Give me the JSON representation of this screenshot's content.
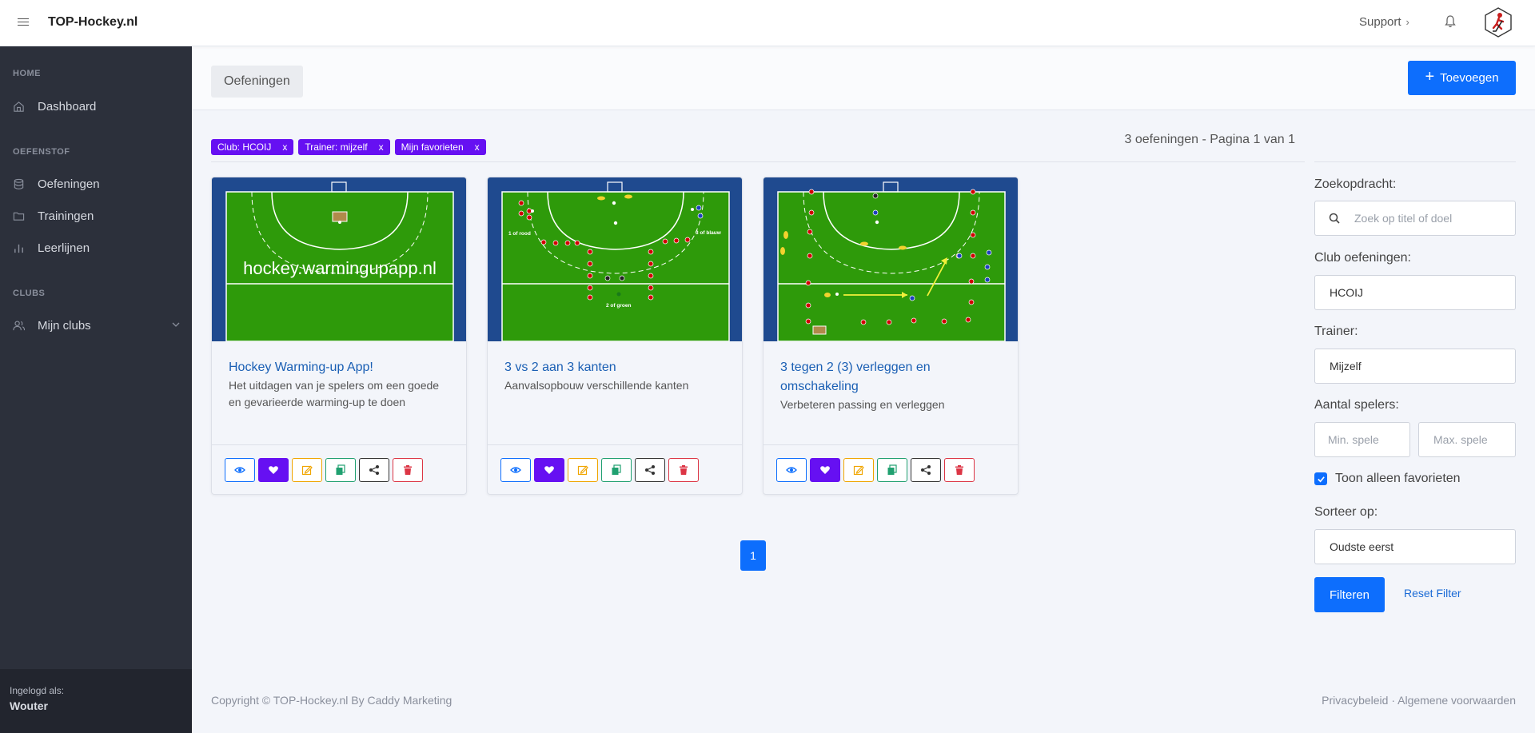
{
  "header": {
    "brand": "TOP-Hockey.nl",
    "support_label": "Support",
    "support_chevron": "›",
    "icons": [
      "menu-icon",
      "bell-icon",
      "hockey-player-avatar-icon"
    ]
  },
  "sidebar": {
    "sections": [
      {
        "label": "HOME",
        "items": [
          {
            "label": "Dashboard",
            "icon": "home-icon"
          }
        ]
      },
      {
        "label": "OEFENSTOF",
        "items": [
          {
            "label": "Oefeningen",
            "icon": "database-icon"
          },
          {
            "label": "Trainingen",
            "icon": "folder-icon"
          },
          {
            "label": "Leerlijnen",
            "icon": "bar-chart-icon"
          }
        ]
      },
      {
        "label": "CLUBS",
        "items": [
          {
            "label": "Mijn clubs",
            "icon": "users-icon"
          }
        ]
      }
    ],
    "login_label": "Ingelogd als:",
    "login_name": "Wouter"
  },
  "page": {
    "breadcrumb": "Oefeningen",
    "add_label": "Toevoegen",
    "add_plus": "+",
    "chips": [
      {
        "label": "Club: HCOIJ",
        "remove": "x"
      },
      {
        "label": "Trainer: mijzelf",
        "remove": "x"
      },
      {
        "label": "Mijn favorieten",
        "remove": "x"
      }
    ],
    "result_text": "3 oefeningen - Pagina 1 van 1",
    "current_page": "1"
  },
  "cards": [
    {
      "title": "Hockey Warming-up App!",
      "description": "Het uitdagen van je spelers om een goede en gevarieerde warming-up te doen",
      "overlay_text": "hockey.warmingupapp.nl"
    },
    {
      "title": "3 vs 2 aan 3 kanten",
      "description": "Aanvalsopbouw verschillende kanten",
      "labels": [
        "1 of rood",
        "3 of blauw",
        "2 of groen"
      ]
    },
    {
      "title": "3 tegen 2 (3) verleggen en omschakeling",
      "description": "Verbeteren passing en verleggen"
    }
  ],
  "colors": {
    "primary": "#0d6efd",
    "chip": "#6610f2",
    "sidebar": "#2c303b",
    "field_green": "#2e9a0a",
    "field_border": "#1f4a8f"
  },
  "filters": {
    "search_label": "Zoekopdracht:",
    "search_placeholder": "Zoek op titel of doel",
    "club_label": "Club oefeningen:",
    "club_value": "HCOIJ",
    "trainer_label": "Trainer:",
    "trainer_value": "Mijzelf",
    "players_label": "Aantal spelers:",
    "min_placeholder": "Min. spele",
    "max_placeholder": "Max. spele",
    "favorites_label": "Toon alleen favorieten",
    "sort_label": "Sorteer op:",
    "sort_value": "Oudste eerst",
    "filter_button": "Filteren",
    "reset_label": "Reset Filter"
  },
  "footer": {
    "copyright": "Copyright © TOP-Hockey.nl By Caddy Marketing",
    "privacy": "Privacybeleid",
    "separator": "·",
    "terms": "Algemene voorwaarden"
  }
}
